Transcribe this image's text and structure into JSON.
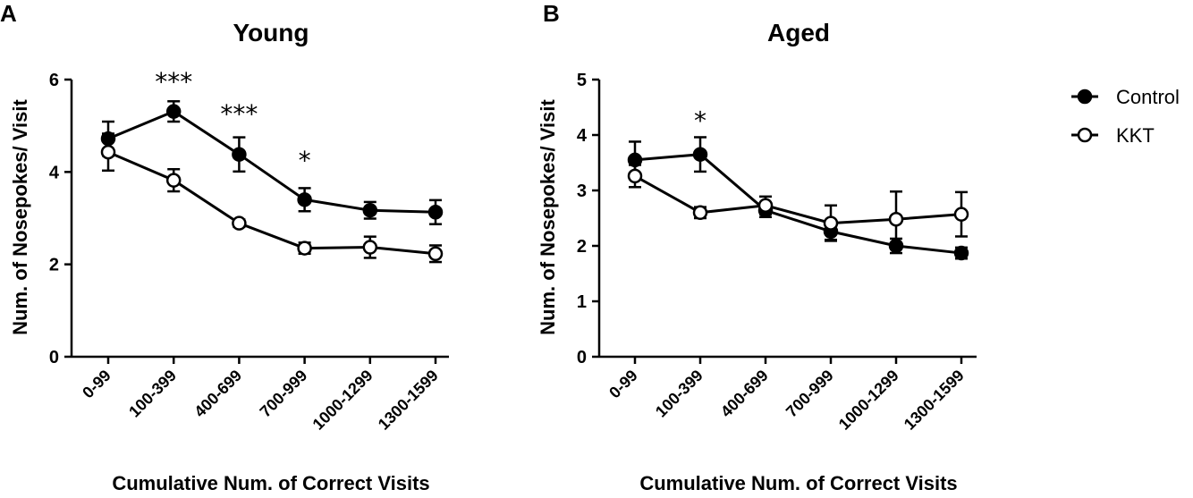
{
  "panel_labels": [
    "A",
    "B"
  ],
  "legend": {
    "control_label": "Control",
    "kkt_label": "KKT"
  },
  "chart_data": [
    {
      "type": "line",
      "panel": "A",
      "title": "Young",
      "xlabel": "Cumulative Num. of Correct Visits",
      "ylabel": "Num. of Nosepokes/ Visit",
      "ylim": [
        0,
        6
      ],
      "yticks": [
        0,
        2,
        4,
        6
      ],
      "categories": [
        "0-99",
        "100-399",
        "400-699",
        "700-999",
        "1000-1299",
        "1300-1599"
      ],
      "series": [
        {
          "name": "Control",
          "marker": "filled",
          "values": [
            4.72,
            5.31,
            4.38,
            3.4,
            3.17,
            3.13
          ],
          "errors": [
            0.37,
            0.22,
            0.37,
            0.25,
            0.18,
            0.26
          ]
        },
        {
          "name": "KKT",
          "marker": "open",
          "values": [
            4.43,
            3.82,
            2.89,
            2.35,
            2.37,
            2.23
          ],
          "errors": [
            0.4,
            0.24,
            0.08,
            0.12,
            0.23,
            0.18
          ]
        }
      ],
      "annotations": [
        {
          "category": "100-399",
          "text": "***",
          "y": 6.0
        },
        {
          "category": "400-699",
          "text": "***",
          "y": 5.3
        },
        {
          "category": "700-999",
          "text": "*",
          "y": 4.3
        }
      ]
    },
    {
      "type": "line",
      "panel": "B",
      "title": "Aged",
      "xlabel": "Cumulative Num. of Correct Visits",
      "ylabel": "Num. of Nosepokes/ Visit",
      "ylim": [
        0,
        5
      ],
      "yticks": [
        0,
        1,
        2,
        3,
        4,
        5
      ],
      "categories": [
        "0-99",
        "100-399",
        "400-699",
        "700-999",
        "1000-1299",
        "1300-1599"
      ],
      "series": [
        {
          "name": "Control",
          "marker": "filled",
          "values": [
            3.55,
            3.65,
            2.64,
            2.26,
            2.0,
            1.87
          ],
          "errors": [
            0.33,
            0.31,
            0.12,
            0.15,
            0.13,
            0.1
          ]
        },
        {
          "name": "KKT",
          "marker": "open",
          "values": [
            3.26,
            2.6,
            2.73,
            2.41,
            2.48,
            2.57
          ],
          "errors": [
            0.2,
            0.1,
            0.16,
            0.32,
            0.5,
            0.4
          ]
        }
      ],
      "annotations": [
        {
          "category": "100-399",
          "text": "*",
          "y": 4.3
        }
      ]
    }
  ]
}
